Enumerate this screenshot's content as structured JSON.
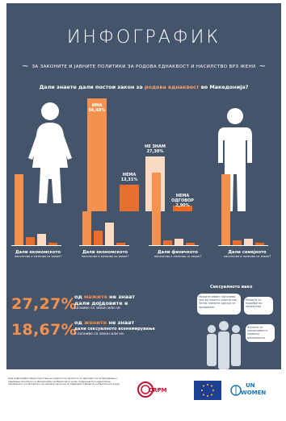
{
  "header": {
    "title": "ИНФОГРАФИК",
    "subtitle": "ЗА ЗАКОНИТЕ И ЈАВНИТЕ ПОЛИТИКИ ЗА РОДОВА ЕДНАКВОСТ И НАСИЛСТВО ВРЗ ЖЕНИ"
  },
  "question": {
    "before": "Дали знаете дали постои закон за ",
    "highlight": "родова еднаквост",
    "after": " во Македонија?"
  },
  "main_bars": [
    {
      "label": "ИМА",
      "value": "56,48%",
      "pct": 56.48,
      "color": "#f4914e"
    },
    {
      "label": "НЕМА",
      "value": "13,31%",
      "pct": 13.31,
      "color": "#e46f2f"
    },
    {
      "label": "НЕ ЗНАМ",
      "value": "27,30%",
      "pct": 27.3,
      "color": "#fbdac3"
    },
    {
      "label": "НЕМА ОДГОВОР",
      "value": "2,90%",
      "pct": 2.9,
      "color": "#f06b22"
    }
  ],
  "small_charts": [
    {
      "caption": "Дали економското",
      "sub": "насилство е казниво со закон?"
    },
    {
      "caption": "Дали економското",
      "sub": "насилство е казниво со закон?"
    },
    {
      "caption": "Дали физичкото",
      "sub": "насилство е казниво со закон?"
    },
    {
      "caption": "Дали семејното",
      "sub": "насилство е казниво со закон?"
    }
  ],
  "stats": [
    {
      "number": "27,27%",
      "line1_a": "од ",
      "line1_hl": "мажите",
      "line1_b": " не знаат",
      "line2": "дали дојдовите е",
      "line3": "казниво со закон или не."
    },
    {
      "number": "18,67%",
      "line1_a": "од ",
      "line1_hl": "жените",
      "line1_b": " не знаат",
      "line2": "дали сексуалното вознемирување",
      "line3": "е казниво со закон или не."
    }
  ],
  "social": {
    "title": "Сексуалното иако",
    "bubbles": [
      "Мажите имаат најголема моќ во нашето општество. Затоа нивните одлуки се прифаќаат",
      "Мажите се подобри во лидерство",
      "Жените се поемотивни и помалку рационални"
    ]
  },
  "footer": {
    "text": "Овој инфографик беше подготвен во рамките на проектот на Центарот за истражување и креирање политики и е финансиран од Европската унија. Содржината е единствена одговорност на авторите и на никаков начин не ги одразува ставовите на Европската унија.",
    "crpm": "CRPM",
    "unwomen_un": "UN",
    "unwomen_women": "WOMEN"
  },
  "colors": {
    "background": "#44546a",
    "accent": "#f4914e",
    "accent_dark": "#e46f2f",
    "accent_light": "#fbdac3"
  }
}
